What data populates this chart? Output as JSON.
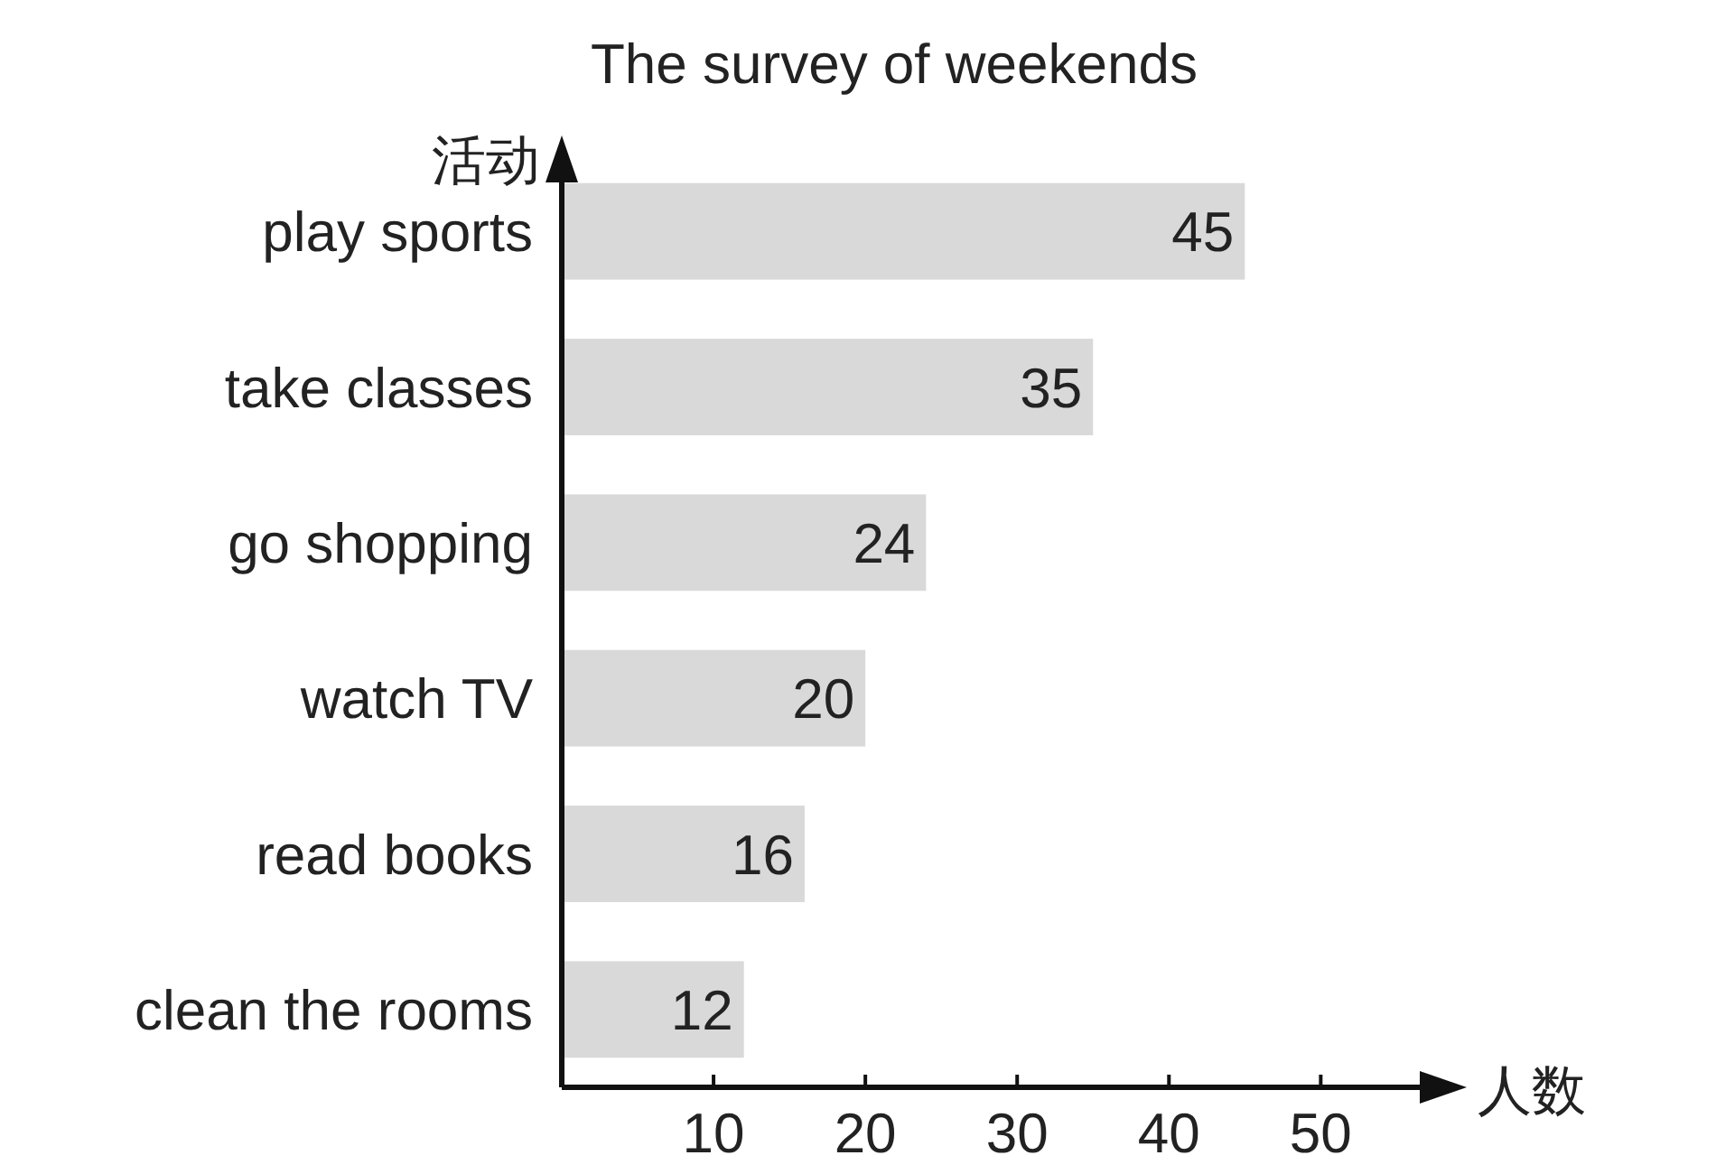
{
  "chart_data": {
    "type": "bar",
    "orientation": "horizontal",
    "title": "The survey of weekends",
    "xlabel": "人数",
    "ylabel": "活动",
    "categories": [
      "play sports",
      "take classes",
      "go shopping",
      "watch TV",
      "read books",
      "clean the rooms"
    ],
    "values": [
      45,
      35,
      24,
      20,
      16,
      12
    ],
    "color": "#d9d9d9",
    "xlim": [
      0,
      57
    ],
    "xticks": [
      10,
      20,
      30,
      40,
      50
    ],
    "data_labels": true
  }
}
